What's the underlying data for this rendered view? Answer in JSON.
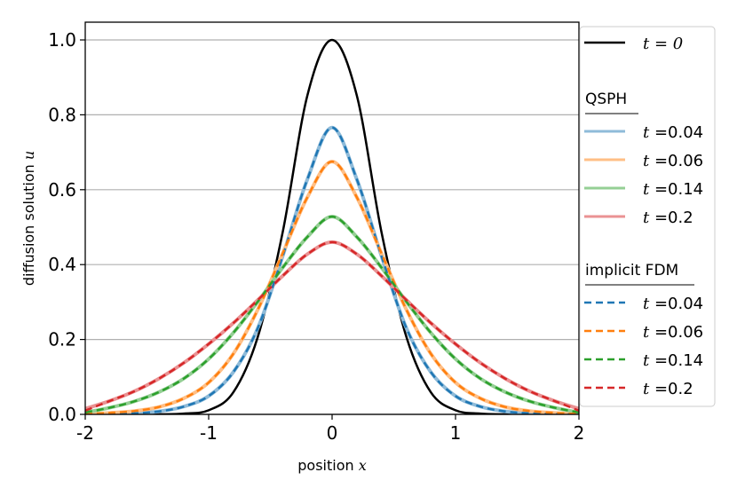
{
  "chart_data": {
    "type": "line",
    "xlabel": "position",
    "xlabel_var": "x",
    "ylabel": "diffusion solution",
    "ylabel_var": "u",
    "xlim": [
      -2,
      2
    ],
    "ylim": [
      0,
      1.05
    ],
    "xticks": [
      -2,
      -1,
      0,
      1,
      2
    ],
    "xtick_labels": [
      "-2",
      "-1",
      "0",
      "1",
      "2"
    ],
    "yticks": [
      0.0,
      0.2,
      0.4,
      0.6,
      0.8,
      1.0
    ],
    "ytick_labels": [
      "0.0",
      "0.2",
      "0.4",
      "0.6",
      "0.8",
      "1.0"
    ],
    "grid": "horizontal",
    "legend_position": "right",
    "x": [
      -2.0,
      -1.8,
      -1.6,
      -1.4,
      -1.2,
      -1.0,
      -0.8,
      -0.6,
      -0.4,
      -0.2,
      0.0,
      0.2,
      0.4,
      0.6,
      0.8,
      1.0,
      1.2,
      1.4,
      1.6,
      1.8,
      2.0
    ],
    "initial": {
      "label": "t = 0",
      "color": "#000000",
      "values": [
        0.0,
        0.0,
        0.0,
        0.0002,
        0.002,
        0.011,
        0.059,
        0.209,
        0.487,
        0.852,
        1.0,
        0.852,
        0.487,
        0.209,
        0.059,
        0.011,
        0.002,
        0.0002,
        0.0,
        0.0,
        0.0
      ]
    },
    "groups": [
      {
        "title": "QSPH",
        "style": "solid",
        "series": [
          {
            "name": "t =0.04",
            "color": "#8fbbd9",
            "values": [
              0.0,
              0.001,
              0.003,
              0.008,
              0.021,
              0.049,
              0.113,
              0.232,
              0.423,
              0.628,
              0.766,
              0.628,
              0.423,
              0.232,
              0.113,
              0.049,
              0.021,
              0.008,
              0.003,
              0.001,
              0.0
            ]
          },
          {
            "name": "t =0.06",
            "color": "#ffbf86",
            "values": [
              0.001,
              0.004,
              0.009,
              0.02,
              0.043,
              0.085,
              0.162,
              0.281,
              0.43,
              0.58,
              0.675,
              0.58,
              0.43,
              0.281,
              0.162,
              0.085,
              0.043,
              0.02,
              0.009,
              0.004,
              0.001
            ]
          },
          {
            "name": "t =0.14",
            "color": "#95cf95",
            "values": [
              0.005,
              0.018,
              0.035,
              0.06,
              0.096,
              0.148,
              0.218,
              0.302,
              0.392,
              0.474,
              0.528,
              0.474,
              0.392,
              0.302,
              0.218,
              0.148,
              0.096,
              0.06,
              0.035,
              0.018,
              0.005
            ]
          },
          {
            "name": "t =0.2",
            "color": "#ea9293",
            "values": [
              0.015,
              0.036,
              0.062,
              0.096,
              0.138,
              0.188,
              0.244,
              0.306,
              0.37,
              0.428,
              0.46,
              0.428,
              0.37,
              0.306,
              0.244,
              0.188,
              0.138,
              0.096,
              0.062,
              0.036,
              0.015
            ]
          }
        ]
      },
      {
        "title": "implicit FDM",
        "style": "dashed",
        "series": [
          {
            "name": "t =0.04",
            "color": "#1f77b4",
            "values": [
              0.0,
              0.001,
              0.003,
              0.008,
              0.021,
              0.049,
              0.113,
              0.232,
              0.423,
              0.628,
              0.766,
              0.628,
              0.423,
              0.232,
              0.113,
              0.049,
              0.021,
              0.008,
              0.003,
              0.001,
              0.0
            ]
          },
          {
            "name": "t =0.06",
            "color": "#ff7f0e",
            "values": [
              0.001,
              0.004,
              0.009,
              0.02,
              0.043,
              0.085,
              0.162,
              0.281,
              0.43,
              0.58,
              0.675,
              0.58,
              0.43,
              0.281,
              0.162,
              0.085,
              0.043,
              0.02,
              0.009,
              0.004,
              0.001
            ]
          },
          {
            "name": "t =0.14",
            "color": "#2ca02c",
            "values": [
              0.005,
              0.018,
              0.035,
              0.06,
              0.096,
              0.148,
              0.218,
              0.302,
              0.392,
              0.474,
              0.528,
              0.474,
              0.392,
              0.302,
              0.218,
              0.148,
              0.096,
              0.06,
              0.035,
              0.018,
              0.005
            ]
          },
          {
            "name": "t =0.2",
            "color": "#d62728",
            "values": [
              0.01,
              0.036,
              0.062,
              0.096,
              0.138,
              0.188,
              0.244,
              0.306,
              0.37,
              0.428,
              0.46,
              0.428,
              0.37,
              0.306,
              0.244,
              0.188,
              0.138,
              0.096,
              0.062,
              0.036,
              0.01
            ]
          }
        ]
      }
    ]
  }
}
